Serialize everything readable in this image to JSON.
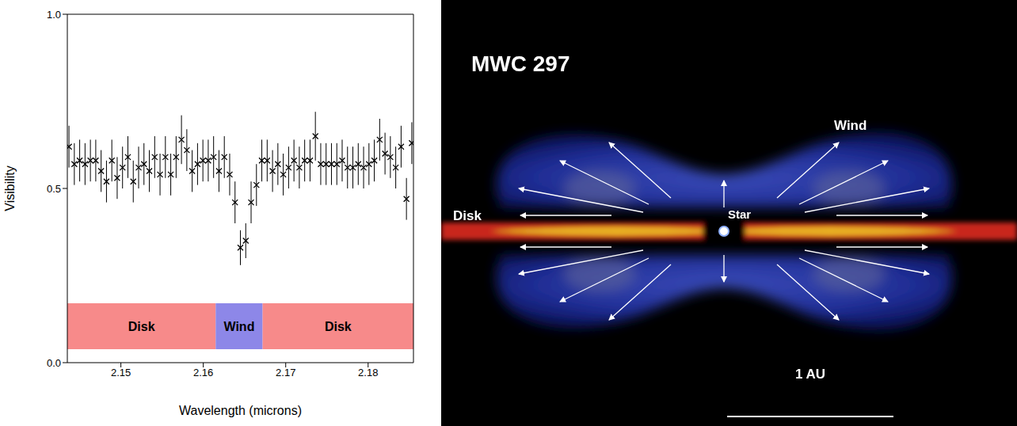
{
  "chart_data": {
    "type": "scatter",
    "x_label": "Wavelength (microns)",
    "y_label": "Visibility",
    "x": [
      2.1437,
      2.14435,
      2.145,
      2.14565,
      2.1463,
      2.14695,
      2.1476,
      2.14825,
      2.1489,
      2.14955,
      2.1502,
      2.15085,
      2.1515,
      2.15215,
      2.1528,
      2.15345,
      2.1541,
      2.15475,
      2.1554,
      2.15605,
      2.1567,
      2.15735,
      2.158,
      2.15865,
      2.1593,
      2.15995,
      2.1606,
      2.16125,
      2.1619,
      2.16255,
      2.1632,
      2.16385,
      2.1645,
      2.16515,
      2.1658,
      2.16645,
      2.1671,
      2.16775,
      2.1684,
      2.16905,
      2.1697,
      2.17035,
      2.171,
      2.17165,
      2.1723,
      2.17295,
      2.1736,
      2.17425,
      2.1749,
      2.17555,
      2.1762,
      2.17685,
      2.1775,
      2.17815,
      2.1788,
      2.17945,
      2.1801,
      2.18075,
      2.1814,
      2.18205,
      2.1827,
      2.18335,
      2.184,
      2.18465,
      2.1853
    ],
    "values": [
      0.62,
      0.57,
      0.58,
      0.57,
      0.58,
      0.58,
      0.55,
      0.52,
      0.58,
      0.53,
      0.56,
      0.59,
      0.52,
      0.56,
      0.57,
      0.55,
      0.59,
      0.54,
      0.59,
      0.54,
      0.59,
      0.64,
      0.61,
      0.55,
      0.57,
      0.58,
      0.58,
      0.59,
      0.55,
      0.59,
      0.54,
      0.46,
      0.33,
      0.35,
      0.46,
      0.51,
      0.58,
      0.58,
      0.55,
      0.57,
      0.54,
      0.56,
      0.58,
      0.56,
      0.58,
      0.58,
      0.65,
      0.57,
      0.57,
      0.57,
      0.57,
      0.58,
      0.56,
      0.56,
      0.57,
      0.56,
      0.57,
      0.58,
      0.64,
      0.6,
      0.59,
      0.56,
      0.62,
      0.47,
      0.63
    ],
    "errors": [
      0.06,
      0.06,
      0.06,
      0.06,
      0.06,
      0.06,
      0.06,
      0.06,
      0.06,
      0.06,
      0.06,
      0.06,
      0.06,
      0.06,
      0.06,
      0.06,
      0.06,
      0.06,
      0.06,
      0.06,
      0.06,
      0.07,
      0.06,
      0.06,
      0.06,
      0.06,
      0.06,
      0.06,
      0.06,
      0.06,
      0.06,
      0.06,
      0.05,
      0.05,
      0.06,
      0.06,
      0.06,
      0.06,
      0.06,
      0.06,
      0.06,
      0.06,
      0.06,
      0.06,
      0.06,
      0.06,
      0.07,
      0.06,
      0.06,
      0.06,
      0.06,
      0.06,
      0.06,
      0.06,
      0.06,
      0.06,
      0.06,
      0.06,
      0.06,
      0.06,
      0.06,
      0.06,
      0.06,
      0.06,
      0.06
    ],
    "marker": "x",
    "color": "#000000",
    "xlim": [
      2.1435,
      2.1855
    ],
    "xticks": [
      2.15,
      2.16,
      2.17,
      2.18
    ],
    "ylim": [
      0,
      1
    ],
    "yticks": [
      {
        "value": 0,
        "label": "0.0"
      },
      0.5,
      {
        "value": 1,
        "label": "1.0"
      }
    ],
    "regions": [
      {
        "label": "Disk",
        "range": [
          2.1435,
          2.1615
        ],
        "color": "#f78a8a"
      },
      {
        "label": "Wind",
        "range": [
          2.1615,
          2.1672
        ],
        "color": "#8d87e8"
      },
      {
        "label": "Disk",
        "range": [
          2.1672,
          2.1855
        ],
        "color": "#f78a8a"
      }
    ]
  },
  "diagram": {
    "title": "MWC 297",
    "labels": {
      "wind": "Wind",
      "disk": "Disk",
      "star": "Star"
    },
    "scale_bar": "1 AU"
  }
}
